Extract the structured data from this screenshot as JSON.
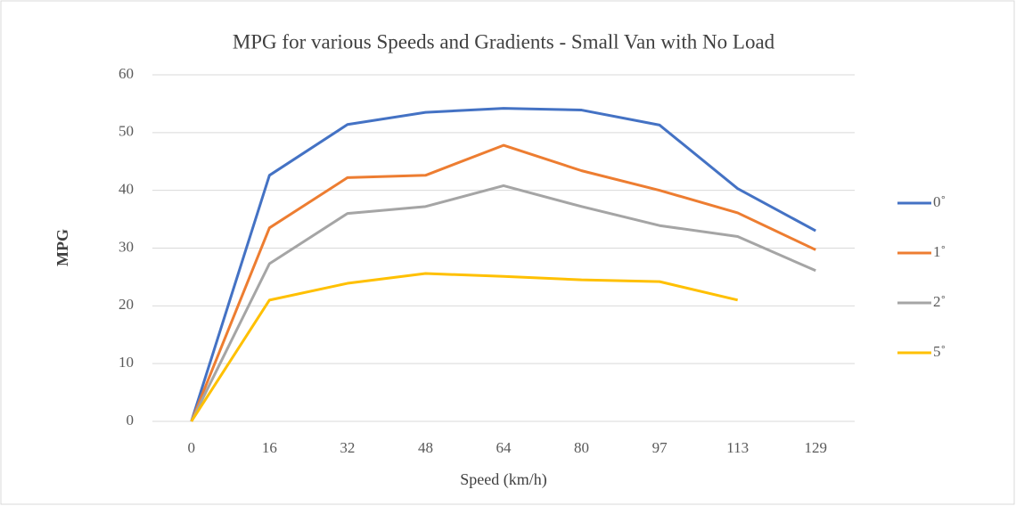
{
  "chart_data": {
    "type": "line",
    "title": "MPG for various Speeds and Gradients - Small Van with No Load",
    "xlabel": "Speed (km/h)",
    "ylabel": "MPG",
    "categories": [
      "0",
      "16",
      "32",
      "48",
      "64",
      "80",
      "97",
      "113",
      "129"
    ],
    "series": [
      {
        "name": "0˚",
        "color": "#4472c4",
        "values": [
          0,
          42.6,
          51.4,
          53.5,
          54.2,
          53.9,
          51.3,
          40.3,
          33.0
        ]
      },
      {
        "name": "1˚",
        "color": "#ed7d31",
        "values": [
          0,
          33.5,
          42.2,
          42.6,
          47.8,
          43.4,
          40.0,
          36.1,
          29.7
        ]
      },
      {
        "name": "2˚",
        "color": "#a5a5a5",
        "values": [
          0,
          27.3,
          36.0,
          37.2,
          40.8,
          37.2,
          33.9,
          32.0,
          26.1
        ]
      },
      {
        "name": "5˚",
        "color": "#ffc000",
        "values": [
          0,
          21.0,
          23.9,
          25.6,
          25.1,
          24.5,
          24.2,
          21.0,
          null
        ]
      }
    ],
    "ylim": [
      0,
      60
    ],
    "yticks": [
      0,
      10,
      20,
      30,
      40,
      50,
      60
    ],
    "grid": true,
    "legend": "right"
  }
}
